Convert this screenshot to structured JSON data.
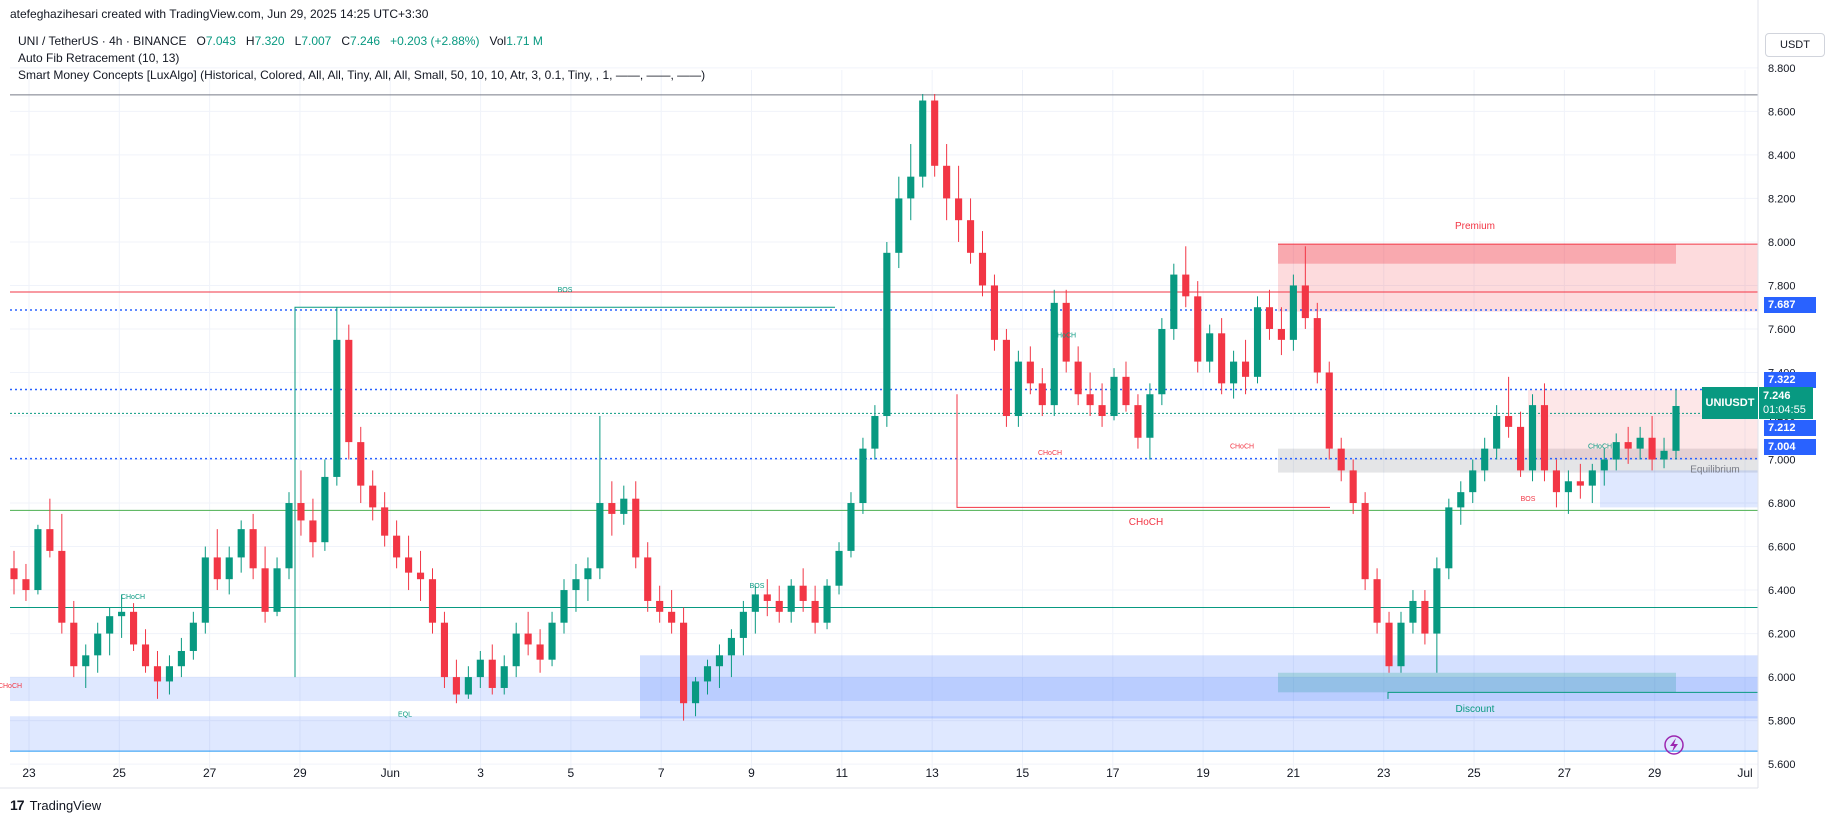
{
  "header": {
    "created_by": "atefeghazihesari created with TradingView.com, Jun 29, 2025 14:25 UTC+3:30",
    "symbol": "UNI / TetherUS · 4h · BINANCE",
    "o_label": "O",
    "o_val": "7.043",
    "h_label": "H",
    "h_val": "7.320",
    "l_label": "L",
    "l_val": "7.007",
    "c_label": "C",
    "c_val": "7.246",
    "change": "+0.203 (+2.88%)",
    "vol_label": "Vol",
    "vol_val": "1.71 M",
    "indicator_1": "Auto Fib Retracement (10, 13)",
    "indicator_2": "Smart Money Concepts [LuxAlgo] (Historical, Colored, All, All, Tiny, All, All, Small, 50, 10, 10, Atr, 3, 0.1, Tiny, , 1, ——, ——, ——)"
  },
  "unit_button": "USDT",
  "footer": {
    "brand": "TradingView",
    "logo": "17"
  },
  "price_tags": {
    "p7687": "7.687",
    "p7322": "7.322",
    "p7212": "7.212",
    "p7004": "7.004",
    "last_symbol": "UNIUSDT",
    "last_price": "7.246",
    "countdown": "01:04:55"
  },
  "colors": {
    "up": "#089981",
    "down": "#f23645",
    "blue": "#2962ff"
  },
  "chart_data": {
    "type": "candlestick",
    "title": "UNI / TetherUS · 4h · BINANCE",
    "ylim": [
      5.55,
      8.85
    ],
    "y_ticks": [
      "8.800",
      "8.600",
      "8.400",
      "8.200",
      "8.000",
      "7.800",
      "7.600",
      "7.400",
      "7.200",
      "7.000",
      "6.800",
      "6.600",
      "6.400",
      "6.200",
      "6.000",
      "5.800",
      "5.600"
    ],
    "x_ticks": [
      "23",
      "25",
      "27",
      "29",
      "Jun",
      "3",
      "5",
      "7",
      "9",
      "11",
      "13",
      "15",
      "17",
      "19",
      "21",
      "23",
      "25",
      "27",
      "29",
      "Jul"
    ],
    "annotations": [
      "BOS",
      "CHoCH",
      "CHoCH",
      "EQL",
      "BOS",
      "CHoCH",
      "CHoCH",
      "CHoCH",
      "Premium",
      "Equilibrium",
      "Discount",
      "CHoCH",
      "BOS",
      "CHoCH"
    ],
    "key_levels": [
      7.687,
      7.322,
      7.212,
      7.004,
      8.676,
      7.77,
      6.766,
      6.32,
      5.66
    ],
    "ohlc": [
      [
        6.5,
        6.58,
        6.38,
        6.45
      ],
      [
        6.45,
        6.52,
        6.35,
        6.4
      ],
      [
        6.4,
        6.7,
        6.38,
        6.68
      ],
      [
        6.68,
        6.82,
        6.55,
        6.58
      ],
      [
        6.58,
        6.75,
        6.2,
        6.25
      ],
      [
        6.25,
        6.35,
        6.0,
        6.05
      ],
      [
        6.05,
        6.15,
        5.95,
        6.1
      ],
      [
        6.1,
        6.25,
        6.02,
        6.2
      ],
      [
        6.2,
        6.32,
        6.1,
        6.28
      ],
      [
        6.28,
        6.38,
        6.18,
        6.3
      ],
      [
        6.3,
        6.34,
        6.12,
        6.15
      ],
      [
        6.15,
        6.22,
        6.02,
        6.05
      ],
      [
        6.05,
        6.12,
        5.9,
        5.98
      ],
      [
        5.98,
        6.1,
        5.92,
        6.05
      ],
      [
        6.05,
        6.18,
        6.0,
        6.12
      ],
      [
        6.12,
        6.3,
        6.08,
        6.25
      ],
      [
        6.25,
        6.6,
        6.2,
        6.55
      ],
      [
        6.55,
        6.68,
        6.4,
        6.45
      ],
      [
        6.45,
        6.6,
        6.38,
        6.55
      ],
      [
        6.55,
        6.72,
        6.48,
        6.68
      ],
      [
        6.68,
        6.75,
        6.45,
        6.5
      ],
      [
        6.5,
        6.6,
        6.25,
        6.3
      ],
      [
        6.3,
        6.55,
        6.28,
        6.5
      ],
      [
        6.5,
        6.85,
        6.45,
        6.8
      ],
      [
        6.8,
        6.95,
        6.65,
        6.72
      ],
      [
        6.72,
        6.82,
        6.55,
        6.62
      ],
      [
        6.62,
        7.0,
        6.58,
        6.92
      ],
      [
        6.92,
        7.7,
        6.88,
        7.55
      ],
      [
        7.55,
        7.62,
        7.0,
        7.08
      ],
      [
        7.08,
        7.15,
        6.8,
        6.88
      ],
      [
        6.88,
        6.95,
        6.72,
        6.78
      ],
      [
        6.78,
        6.85,
        6.6,
        6.65
      ],
      [
        6.65,
        6.72,
        6.5,
        6.55
      ],
      [
        6.55,
        6.65,
        6.4,
        6.48
      ],
      [
        6.48,
        6.58,
        6.35,
        6.45
      ],
      [
        6.45,
        6.5,
        6.2,
        6.25
      ],
      [
        6.25,
        6.3,
        5.95,
        6.0
      ],
      [
        6.0,
        6.08,
        5.88,
        5.92
      ],
      [
        5.92,
        6.05,
        5.9,
        6.0
      ],
      [
        6.0,
        6.12,
        5.95,
        6.08
      ],
      [
        6.08,
        6.15,
        5.92,
        5.95
      ],
      [
        5.95,
        6.1,
        5.92,
        6.05
      ],
      [
        6.05,
        6.25,
        6.0,
        6.2
      ],
      [
        6.2,
        6.3,
        6.1,
        6.15
      ],
      [
        6.15,
        6.22,
        6.02,
        6.08
      ],
      [
        6.08,
        6.3,
        6.05,
        6.25
      ],
      [
        6.25,
        6.45,
        6.2,
        6.4
      ],
      [
        6.4,
        6.52,
        6.3,
        6.45
      ],
      [
        6.45,
        6.55,
        6.35,
        6.5
      ],
      [
        6.5,
        7.2,
        6.45,
        6.8
      ],
      [
        6.8,
        6.9,
        6.65,
        6.75
      ],
      [
        6.75,
        6.88,
        6.7,
        6.82
      ],
      [
        6.82,
        6.9,
        6.5,
        6.55
      ],
      [
        6.55,
        6.62,
        6.3,
        6.35
      ],
      [
        6.35,
        6.42,
        6.25,
        6.3
      ],
      [
        6.3,
        6.4,
        6.2,
        6.25
      ],
      [
        6.25,
        6.32,
        5.8,
        5.88
      ],
      [
        5.88,
        6.0,
        5.82,
        5.98
      ],
      [
        5.98,
        6.08,
        5.92,
        6.05
      ],
      [
        6.05,
        6.15,
        5.95,
        6.1
      ],
      [
        6.1,
        6.22,
        6.0,
        6.18
      ],
      [
        6.18,
        6.35,
        6.1,
        6.3
      ],
      [
        6.3,
        6.42,
        6.2,
        6.38
      ],
      [
        6.38,
        6.45,
        6.28,
        6.35
      ],
      [
        6.35,
        6.42,
        6.25,
        6.3
      ],
      [
        6.3,
        6.45,
        6.25,
        6.42
      ],
      [
        6.42,
        6.5,
        6.3,
        6.35
      ],
      [
        6.35,
        6.42,
        6.2,
        6.25
      ],
      [
        6.25,
        6.45,
        6.22,
        6.42
      ],
      [
        6.42,
        6.62,
        6.38,
        6.58
      ],
      [
        6.58,
        6.85,
        6.55,
        6.8
      ],
      [
        6.8,
        7.1,
        6.75,
        7.05
      ],
      [
        7.05,
        7.25,
        7.0,
        7.2
      ],
      [
        7.2,
        8.0,
        7.15,
        7.95
      ],
      [
        7.95,
        8.3,
        7.88,
        8.2
      ],
      [
        8.2,
        8.45,
        8.1,
        8.3
      ],
      [
        8.3,
        8.68,
        8.25,
        8.65
      ],
      [
        8.65,
        8.68,
        8.3,
        8.35
      ],
      [
        8.35,
        8.45,
        8.1,
        8.2
      ],
      [
        8.2,
        8.35,
        8.0,
        8.1
      ],
      [
        8.1,
        8.2,
        7.9,
        7.95
      ],
      [
        7.95,
        8.05,
        7.75,
        7.8
      ],
      [
        7.8,
        7.85,
        7.5,
        7.55
      ],
      [
        7.55,
        7.6,
        7.15,
        7.2
      ],
      [
        7.2,
        7.5,
        7.15,
        7.45
      ],
      [
        7.45,
        7.52,
        7.3,
        7.35
      ],
      [
        7.35,
        7.42,
        7.2,
        7.25
      ],
      [
        7.25,
        7.78,
        7.2,
        7.72
      ],
      [
        7.72,
        7.78,
        7.4,
        7.45
      ],
      [
        7.45,
        7.52,
        7.25,
        7.3
      ],
      [
        7.3,
        7.4,
        7.2,
        7.25
      ],
      [
        7.25,
        7.35,
        7.15,
        7.2
      ],
      [
        7.2,
        7.42,
        7.18,
        7.38
      ],
      [
        7.38,
        7.45,
        7.22,
        7.25
      ],
      [
        7.25,
        7.3,
        7.05,
        7.1
      ],
      [
        7.1,
        7.35,
        7.0,
        7.3
      ],
      [
        7.3,
        7.65,
        7.25,
        7.6
      ],
      [
        7.6,
        7.9,
        7.55,
        7.85
      ],
      [
        7.85,
        7.98,
        7.7,
        7.75
      ],
      [
        7.75,
        7.82,
        7.4,
        7.45
      ],
      [
        7.45,
        7.62,
        7.4,
        7.58
      ],
      [
        7.58,
        7.65,
        7.3,
        7.35
      ],
      [
        7.35,
        7.5,
        7.28,
        7.45
      ],
      [
        7.45,
        7.55,
        7.3,
        7.38
      ],
      [
        7.38,
        7.75,
        7.35,
        7.7
      ],
      [
        7.7,
        7.78,
        7.55,
        7.6
      ],
      [
        7.6,
        7.7,
        7.48,
        7.55
      ],
      [
        7.55,
        7.85,
        7.5,
        7.8
      ],
      [
        7.8,
        7.98,
        7.6,
        7.65
      ],
      [
        7.65,
        7.72,
        7.35,
        7.4
      ],
      [
        7.4,
        7.45,
        7.0,
        7.05
      ],
      [
        7.05,
        7.1,
        6.9,
        6.95
      ],
      [
        6.95,
        7.0,
        6.75,
        6.8
      ],
      [
        6.8,
        6.85,
        6.4,
        6.45
      ],
      [
        6.45,
        6.5,
        6.2,
        6.25
      ],
      [
        6.25,
        6.3,
        6.02,
        6.05
      ],
      [
        6.05,
        6.3,
        6.02,
        6.25
      ],
      [
        6.25,
        6.4,
        6.2,
        6.35
      ],
      [
        6.35,
        6.4,
        6.15,
        6.2
      ],
      [
        6.2,
        6.55,
        6.02,
        6.5
      ],
      [
        6.5,
        6.82,
        6.45,
        6.78
      ],
      [
        6.78,
        6.9,
        6.7,
        6.85
      ],
      [
        6.85,
        7.0,
        6.8,
        6.95
      ],
      [
        6.95,
        7.1,
        6.9,
        7.05
      ],
      [
        7.05,
        7.25,
        7.0,
        7.2
      ],
      [
        7.2,
        7.38,
        7.1,
        7.15
      ],
      [
        7.15,
        7.22,
        6.92,
        6.95
      ],
      [
        6.95,
        7.3,
        6.9,
        7.25
      ],
      [
        7.25,
        7.35,
        6.9,
        6.95
      ],
      [
        6.95,
        7.0,
        6.78,
        6.85
      ],
      [
        6.85,
        6.95,
        6.75,
        6.9
      ],
      [
        6.9,
        6.98,
        6.82,
        6.88
      ],
      [
        6.88,
        6.98,
        6.8,
        6.95
      ],
      [
        6.95,
        7.05,
        6.88,
        7.0
      ],
      [
        7.0,
        7.12,
        6.95,
        7.08
      ],
      [
        7.08,
        7.15,
        6.98,
        7.05
      ],
      [
        7.05,
        7.15,
        7.0,
        7.1
      ],
      [
        7.1,
        7.2,
        6.95,
        7.0
      ],
      [
        7.0,
        7.1,
        6.96,
        7.04
      ],
      [
        7.04,
        7.32,
        7.0,
        7.246
      ]
    ]
  }
}
